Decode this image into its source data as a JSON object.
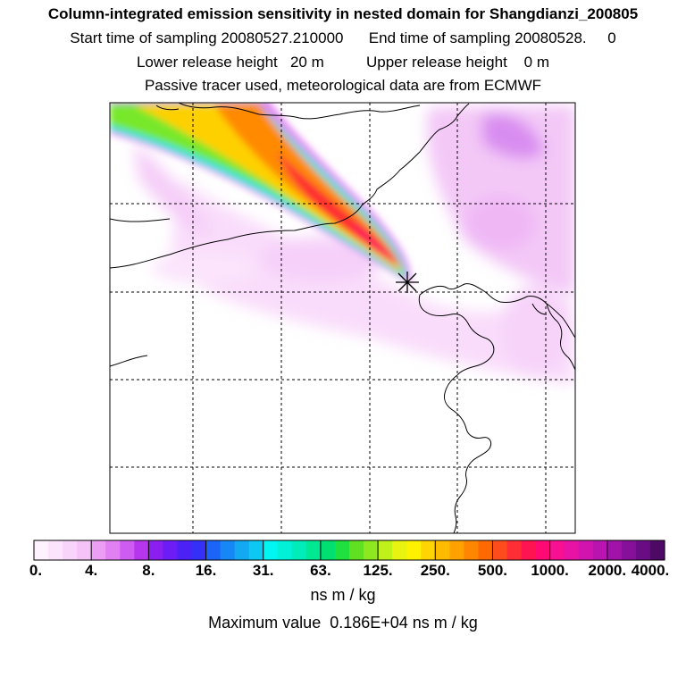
{
  "header": {
    "title": "Column-integrated emission sensitivity in nested domain for Shangdianzi_200805",
    "line2": "Start time of sampling 20080527.210000      End time of sampling 20080528.     0",
    "line3": "Lower release height   20 m          Upper release height    0 m",
    "line4": "Passive tracer used, meteorological data are from ECMWF"
  },
  "chart_data": {
    "type": "heatmap",
    "title": "Column-integrated emission sensitivity in nested domain for Shangdianzi_200805",
    "colorbar": {
      "tick_labels": [
        "0.",
        "4.",
        "8.",
        "16.",
        "31.",
        "63.",
        "125.",
        "250.",
        "500.",
        "1000.",
        "2000.",
        "4000."
      ],
      "unit": "ns m / kg",
      "colors": [
        "#fef2fe",
        "#fbe4fc",
        "#f8d4fa",
        "#f5c3f8",
        "#ec9df4",
        "#e080f2",
        "#cf5cf0",
        "#b636ee",
        "#8a1ff0",
        "#6c1cf4",
        "#4b21f6",
        "#3530f7",
        "#1c63f7",
        "#1787f5",
        "#12a8f2",
        "#0dc8f0",
        "#00f6f0",
        "#00f0d8",
        "#00ecb8",
        "#00e892",
        "#00e070",
        "#20e040",
        "#60e020",
        "#8ee820",
        "#bef21a",
        "#e8f410",
        "#fff200",
        "#ffd400",
        "#ffbb00",
        "#ffa200",
        "#ff8600",
        "#ff6a00",
        "#ff4c1c",
        "#ff2e34",
        "#ff1452",
        "#ff0a74",
        "#f81092",
        "#e812a4",
        "#d214ae",
        "#ba14b0",
        "#a012a8",
        "#86109a",
        "#6a0c84",
        "#4e0866"
      ],
      "ticks_per_segment": 4
    },
    "maximum_value_text": "Maximum value  0.186E+04 ns m / kg"
  },
  "colors": {
    "background": "#ffffff",
    "frame": "#000000",
    "receptor_marker": "#000000"
  }
}
